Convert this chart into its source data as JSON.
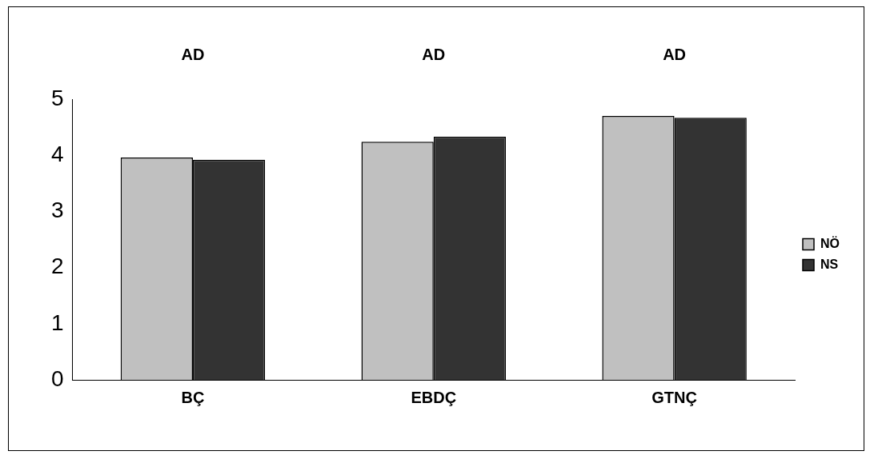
{
  "chart_data": {
    "type": "bar",
    "categories": [
      "BÇ",
      "EBDÇ",
      "GTNÇ"
    ],
    "series": [
      {
        "name": "NÖ",
        "color": "#c0c0c0",
        "values": [
          3.96,
          4.24,
          4.7
        ]
      },
      {
        "name": "NS",
        "color": "#333333",
        "values": [
          3.92,
          4.33,
          4.67
        ]
      }
    ],
    "ylim": [
      0,
      5
    ],
    "yticks": [
      0,
      1,
      2,
      3,
      4,
      5
    ],
    "grid": false,
    "legend": "right",
    "annotations": [
      "AD",
      "AD",
      "AD"
    ]
  }
}
